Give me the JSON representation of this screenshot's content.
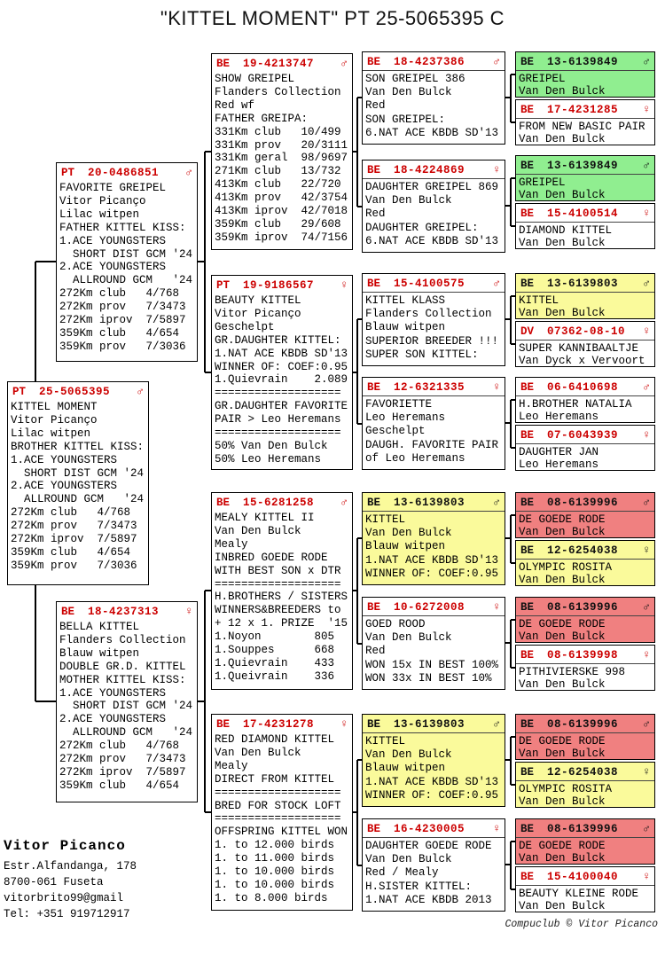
{
  "title": "\"KITTEL MOMENT\"  PT  25-5065395 C",
  "colors": {
    "accent_red": "#cc0000",
    "green": "#90ee90",
    "yellow": "#fafa9b",
    "pink": "#f08080"
  },
  "owner": {
    "name": "Vitor Picanco",
    "address_lines": [
      "Estr.Alfandanga, 178",
      "8700-061 Fuseta",
      "vitorbrito99@gmail",
      "Tel: +351 919712917"
    ]
  },
  "footer": {
    "credit": "Compuclub © Vitor Picanco"
  },
  "boxes": {
    "gen1": [
      {
        "country": "PT",
        "number": "25-5065395",
        "sex": "male",
        "color": "white",
        "lines": [
          "KITTEL MOMENT",
          "Vitor Picanço",
          "Lilac witpen",
          "BROTHER KITTEL KISS:",
          "1.ACE YOUNGSTERS",
          "  SHORT DIST GCM '24",
          "2.ACE YOUNGSTERS",
          "  ALLROUND GCM   '24",
          "272Km club   4/768",
          "272Km prov   7/3473",
          "272Km iprov  7/5897",
          "359Km club   4/654",
          "359Km prov   7/3036"
        ]
      }
    ],
    "gen2": [
      {
        "country": "PT",
        "number": "20-0486851",
        "sex": "male",
        "color": "white",
        "lines": [
          "FAVORITE GREIPEL",
          "Vitor Picanço",
          "Lilac witpen",
          "FATHER KITTEL KISS:",
          "1.ACE YOUNGSTERS",
          "  SHORT DIST GCM '24",
          "2.ACE YOUNGSTERS",
          "  ALLROUND GCM   '24",
          "272Km club   4/768",
          "272Km prov   7/3473",
          "272Km iprov  7/5897",
          "359Km club   4/654",
          "359Km prov   7/3036"
        ]
      },
      {
        "country": "BE",
        "number": "18-4237313",
        "sex": "female",
        "color": "white",
        "lines": [
          "BELLA KITTEL",
          "Flanders Collection",
          "Blauw witpen",
          "DOUBLE GR.D. KITTEL",
          "MOTHER KITTEL KISS:",
          "1.ACE YOUNGSTERS",
          "  SHORT DIST GCM '24",
          "2.ACE YOUNGSTERS",
          "  ALLROUND GCM   '24",
          "272Km club   4/768",
          "272Km prov   7/3473",
          "272Km iprov  7/5897",
          "359Km club   4/654"
        ]
      }
    ],
    "gen3": [
      {
        "country": "BE",
        "number": "19-4213747",
        "sex": "male",
        "color": "white",
        "lines": [
          "SHOW GREIPEL",
          "Flanders Collection",
          "Red wf",
          "FATHER GREIPA:",
          "331Km club   10/499",
          "331Km prov   20/3111",
          "331Km geral  98/9697",
          "271Km club   13/732",
          "413Km club   22/720",
          "413Km prov   42/3754",
          "413Km iprov  42/7018",
          "359Km club   29/608",
          "359Km iprov  74/7156"
        ]
      },
      {
        "country": "PT",
        "number": "19-9186567",
        "sex": "female",
        "color": "white",
        "lines": [
          "BEAUTY KITTEL",
          "Vitor Picanço",
          "Geschelpt",
          "GR.DAUGHTER KITTEL:",
          "1.NAT ACE KBDB SD'13",
          "WINNER OF: COEF:0.95",
          "1.Quievrain    2.089",
          "===================",
          "GR.DAUGHTER FAVORITE",
          "PAIR > Leo Heremans",
          "===================",
          "50% Van Den Bulck",
          "50% Leo Heremans"
        ]
      },
      {
        "country": "BE",
        "number": "15-6281258",
        "sex": "male",
        "color": "white",
        "lines": [
          "MEALY KITTEL II",
          "Van Den Bulck",
          "Mealy",
          "INBRED GOEDE RODE",
          "WITH BEST SON x DTR",
          "===================",
          "H.BROTHERS / SISTERS",
          "WINNERS&BREEDERS to",
          "+ 12 x 1. PRIZE  '15",
          "1.Noyon        805",
          "1.Souppes      668",
          "1.Quievrain    433",
          "1.Queivrain    336"
        ]
      },
      {
        "country": "BE",
        "number": "17-4231278",
        "sex": "female",
        "color": "white",
        "lines": [
          "RED DIAMOND KITTEL",
          "Van Den Bulck",
          "Mealy",
          "DIRECT FROM KITTEL",
          "===================",
          "BRED FOR STOCK LOFT",
          "===================",
          "OFFSPRING KITTEL WON",
          "1. to 12.000 birds",
          "1. to 11.000 birds",
          "1. to 10.000 birds",
          "1. to 10.000 birds",
          "1. to 8.000 birds"
        ]
      }
    ],
    "gen4": [
      {
        "country": "BE",
        "number": "18-4237386",
        "sex": "male",
        "color": "white",
        "lines": [
          "SON GREIPEL 386",
          "Van Den Bulck",
          "Red",
          "SON GREIPEL:",
          "6.NAT ACE KBDB SD'13"
        ]
      },
      {
        "country": "BE",
        "number": "18-4224869",
        "sex": "female",
        "color": "white",
        "lines": [
          "DAUGHTER GREIPEL 869",
          "Van Den Bulck",
          "Red",
          "DAUGHTER GREIPEL:",
          "6.NAT ACE KBDB SD'13"
        ]
      },
      {
        "country": "BE",
        "number": "15-4100575",
        "sex": "male",
        "color": "white",
        "lines": [
          "KITTEL KLASS",
          "Flanders Collection",
          "Blauw witpen",
          "SUPERIOR BREEDER !!!",
          "SUPER SON KITTEL:"
        ]
      },
      {
        "country": "BE",
        "number": "12-6321335",
        "sex": "female",
        "color": "white",
        "lines": [
          "FAVORIETTE",
          "Leo Heremans",
          "Geschelpt",
          "DAUGH. FAVORITE PAIR",
          "of Leo Heremans"
        ]
      },
      {
        "country": "BE",
        "number": "13-6139803",
        "sex": "male",
        "color": "yellow",
        "lines": [
          "KITTEL",
          "Van Den Bulck",
          "Blauw witpen",
          "1.NAT ACE KBDB SD'13",
          "WINNER OF: COEF:0.95"
        ]
      },
      {
        "country": "BE",
        "number": "10-6272008",
        "sex": "female",
        "color": "white",
        "lines": [
          "GOED ROOD",
          "Van Den Bulck",
          "Red",
          "WON 15x IN BEST 100%",
          "WON 33x IN BEST 10%"
        ]
      },
      {
        "country": "BE",
        "number": "13-6139803",
        "sex": "male",
        "color": "yellow",
        "lines": [
          "KITTEL",
          "Van Den Bulck",
          "Blauw witpen",
          "1.NAT ACE KBDB SD'13",
          "WINNER OF: COEF:0.95"
        ]
      },
      {
        "country": "BE",
        "number": "16-4230005",
        "sex": "female",
        "color": "white",
        "lines": [
          "DAUGHTER GOEDE RODE",
          "Van Den Bulck",
          "Red / Mealy",
          "H.SISTER KITTEL:",
          "1.NAT ACE KBDB 2013"
        ]
      }
    ],
    "gen5": [
      {
        "country": "BE",
        "number": "13-6139849",
        "sex": "male",
        "color": "green",
        "lines": [
          "GREIPEL",
          "Van Den Bulck"
        ]
      },
      {
        "country": "BE",
        "number": "17-4231285",
        "sex": "female",
        "color": "white",
        "lines": [
          "FROM NEW BASIC PAIR",
          "Van Den Bulck"
        ]
      },
      {
        "country": "BE",
        "number": "13-6139849",
        "sex": "male",
        "color": "green",
        "lines": [
          "GREIPEL",
          "Van Den Bulck"
        ]
      },
      {
        "country": "BE",
        "number": "15-4100514",
        "sex": "female",
        "color": "white",
        "lines": [
          "DIAMOND KITTEL",
          "Van Den Bulck"
        ]
      },
      {
        "country": "BE",
        "number": "13-6139803",
        "sex": "male",
        "color": "yellow",
        "lines": [
          "KITTEL",
          "Van Den Bulck"
        ]
      },
      {
        "country": "DV",
        "number": "07362-08-10",
        "sex": "female",
        "color": "white",
        "lines": [
          "SUPER KANNIBAALTJE",
          "Van Dyck x Vervoort"
        ]
      },
      {
        "country": "BE",
        "number": "06-6410698",
        "sex": "male",
        "color": "white",
        "lines": [
          "H.BROTHER NATALIA",
          "Leo Heremans"
        ]
      },
      {
        "country": "BE",
        "number": "07-6043939",
        "sex": "female",
        "color": "white",
        "lines": [
          "DAUGHTER JAN",
          "Leo Heremans"
        ]
      },
      {
        "country": "BE",
        "number": "08-6139996",
        "sex": "male",
        "color": "pink",
        "lines": [
          "DE GOEDE RODE",
          "Van Den Bulck"
        ]
      },
      {
        "country": "BE",
        "number": "12-6254038",
        "sex": "female",
        "color": "yellow",
        "lines": [
          "OLYMPIC ROSITA",
          "Van Den Bulck"
        ]
      },
      {
        "country": "BE",
        "number": "08-6139996",
        "sex": "male",
        "color": "pink",
        "lines": [
          "DE GOEDE RODE",
          "Van Den Bulck"
        ]
      },
      {
        "country": "BE",
        "number": "08-6139998",
        "sex": "female",
        "color": "white",
        "lines": [
          "PITHIVIERSKE 998",
          "Van Den Bulck"
        ]
      },
      {
        "country": "BE",
        "number": "08-6139996",
        "sex": "male",
        "color": "pink",
        "lines": [
          "DE GOEDE RODE",
          "Van Den Bulck"
        ]
      },
      {
        "country": "BE",
        "number": "12-6254038",
        "sex": "female",
        "color": "yellow",
        "lines": [
          "OLYMPIC ROSITA",
          "Van Den Bulck"
        ]
      },
      {
        "country": "BE",
        "number": "08-6139996",
        "sex": "male",
        "color": "pink",
        "lines": [
          "DE GOEDE RODE",
          "Van Den Bulck"
        ]
      },
      {
        "country": "BE",
        "number": "15-4100040",
        "sex": "female",
        "color": "white",
        "lines": [
          "BEAUTY KLEINE RODE",
          "Van Den Bulck"
        ]
      }
    ]
  }
}
